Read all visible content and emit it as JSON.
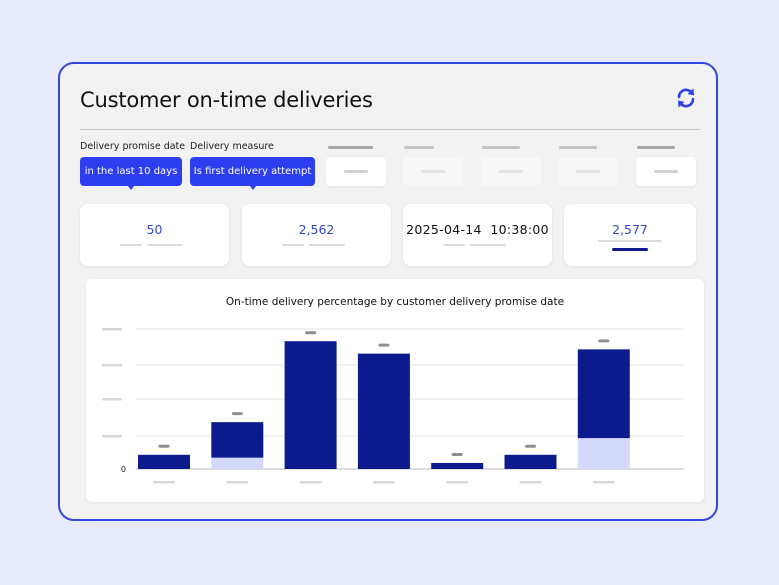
{
  "title": "Customer on-time deliveries",
  "refresh_icon": "refresh-icon",
  "filters": [
    {
      "label": "Delivery promise date",
      "value": "in the last 10 days"
    },
    {
      "label": "Delivery measure",
      "value": "Is first delivery attempt"
    }
  ],
  "kpis": [
    {
      "value": "50"
    },
    {
      "value": "2,562"
    },
    {
      "value": "2025-04-14  10:38:00"
    },
    {
      "value": "2,577"
    }
  ],
  "colors": {
    "accent": "#2d3ef0",
    "border": "#3346e0",
    "bar_dark": "#0b1a8c",
    "bar_light": "#d4d8fa"
  },
  "chart_data": {
    "type": "bar",
    "title": "On-time delivery percentage by customer delivery promise date",
    "y_tick_labels": [
      "0"
    ],
    "ylim": [
      0,
      40
    ],
    "grid": true,
    "stacked": true,
    "series": [
      {
        "values": [
          4,
          10,
          36,
          32.5,
          1.7,
          4,
          25
        ]
      },
      {
        "values": [
          0,
          3.2,
          0,
          0,
          0,
          0,
          8.7
        ]
      }
    ]
  }
}
